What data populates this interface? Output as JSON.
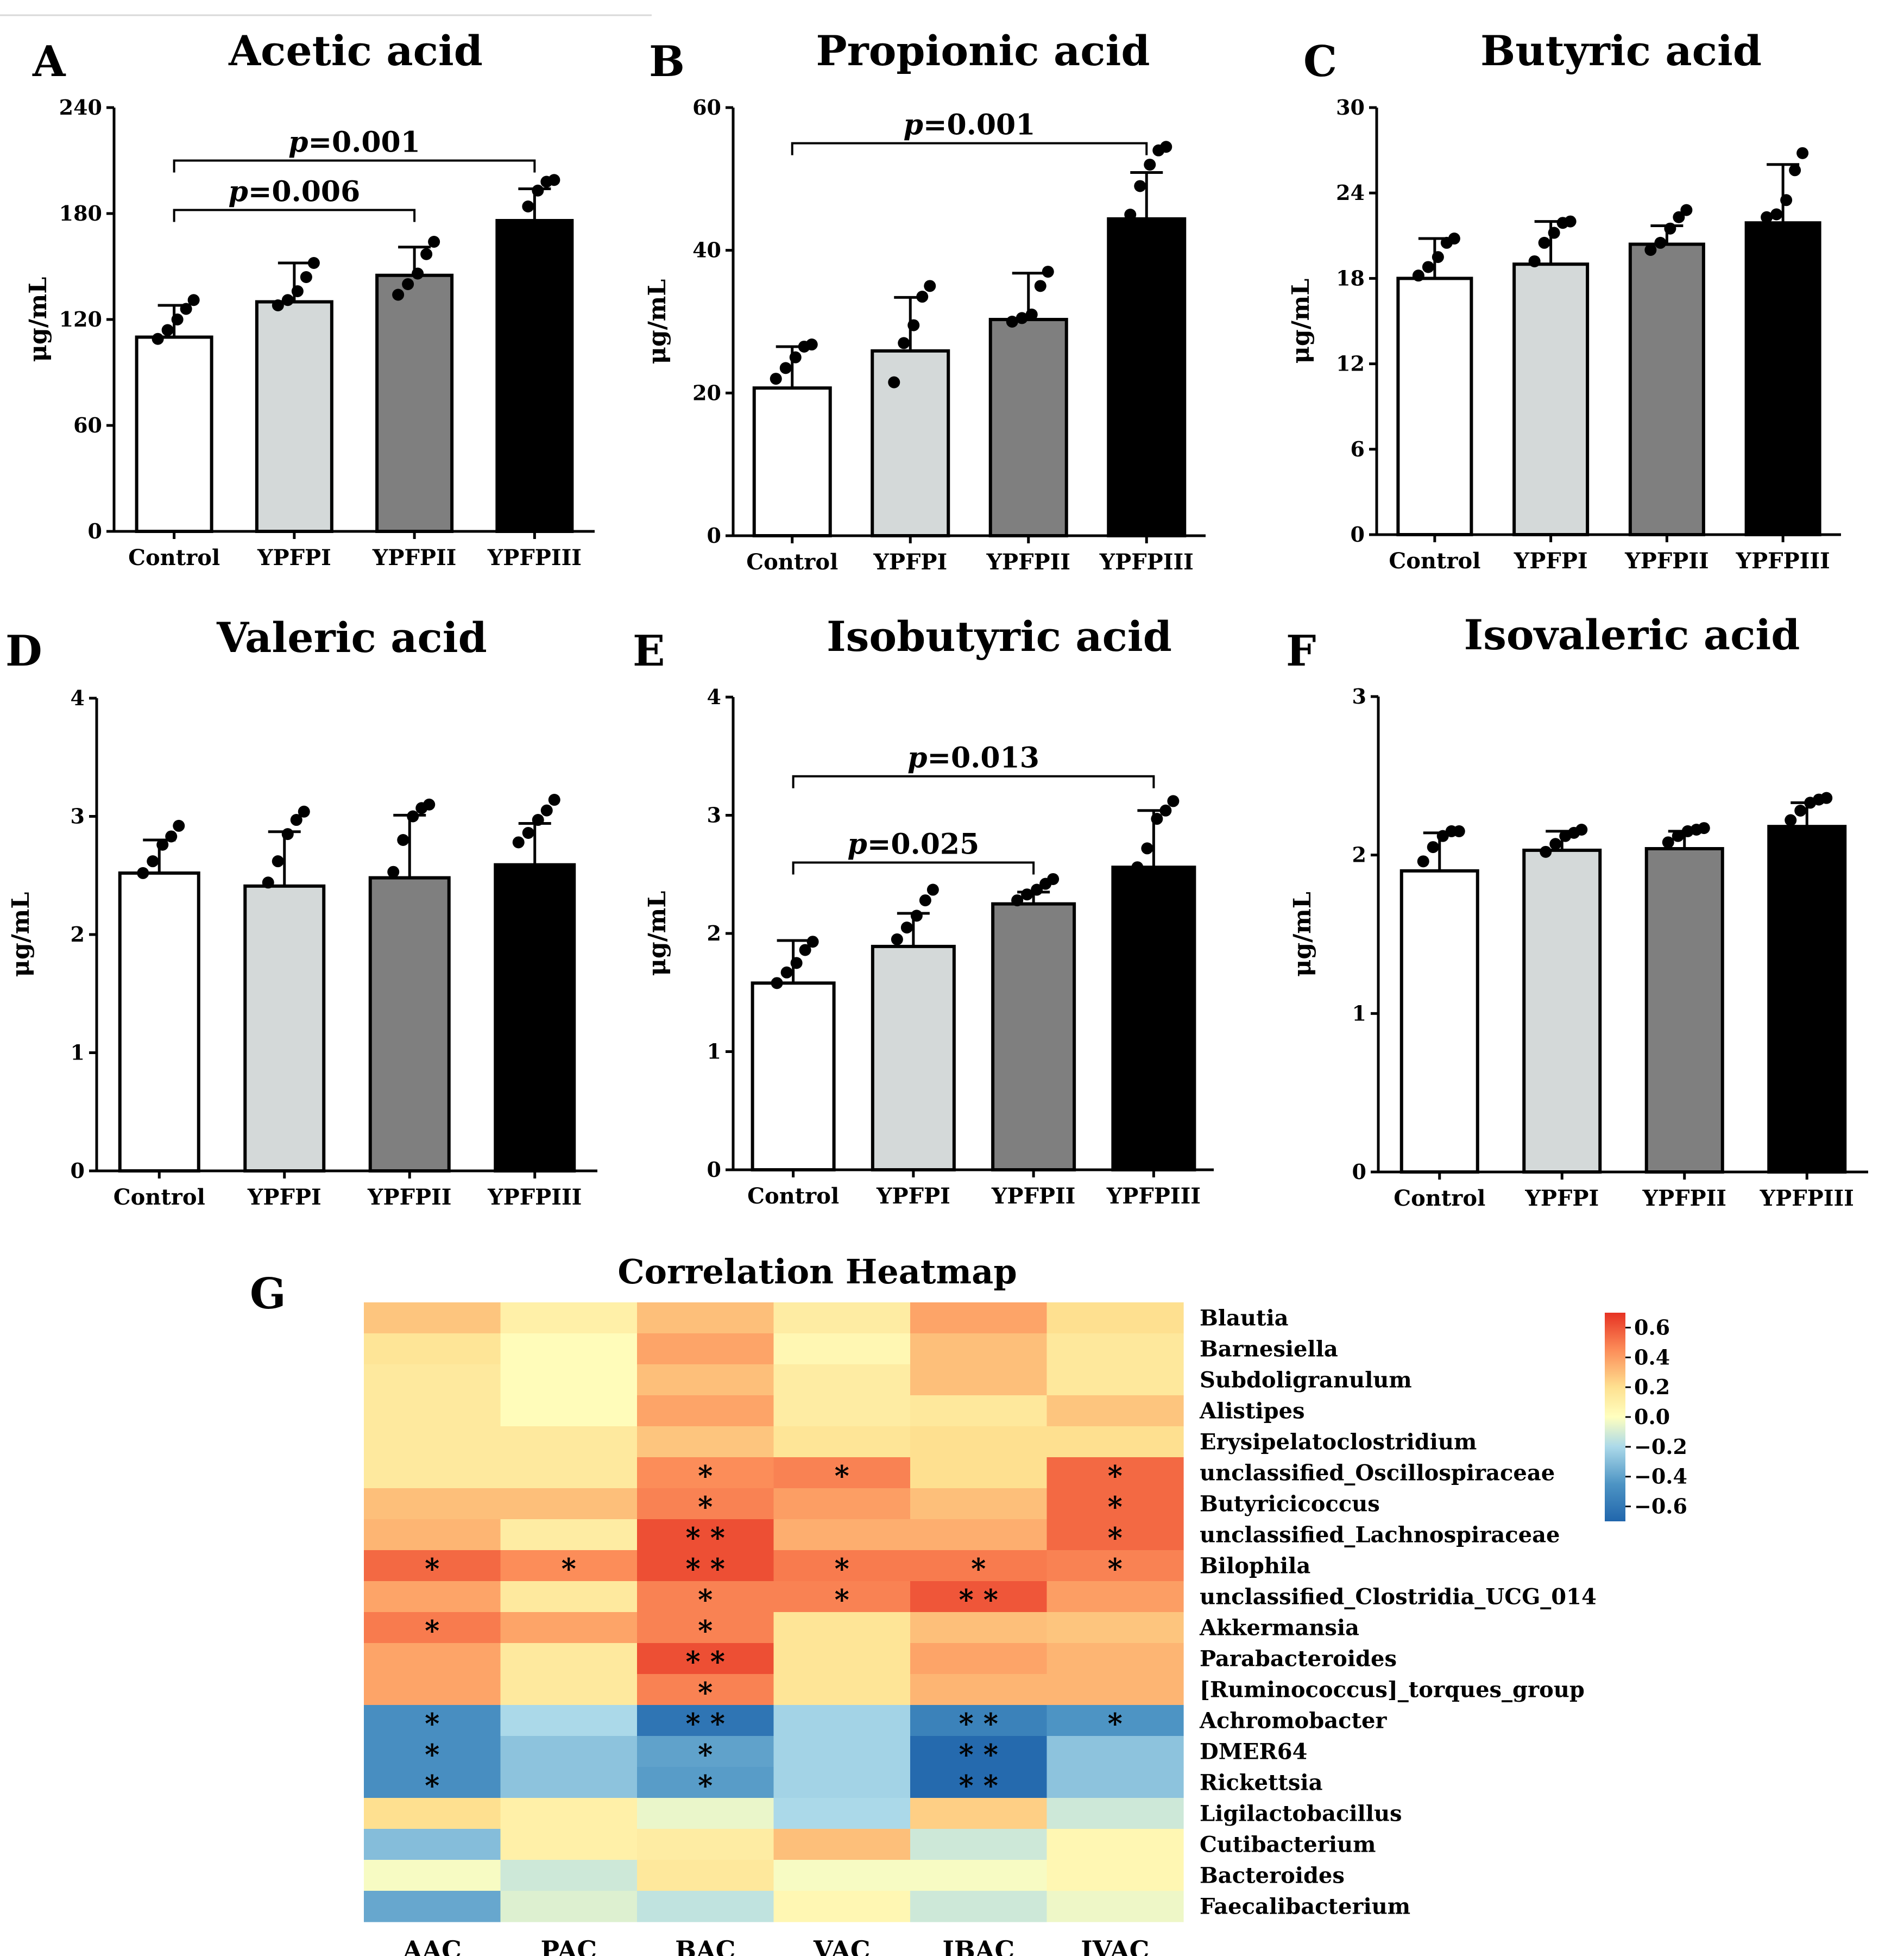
{
  "chart_data": [
    {
      "type": "bar",
      "panel": "A",
      "title": "Acetic acid",
      "ylabel": "μg/mL",
      "ylim": [
        0,
        240
      ],
      "yticks": [
        0,
        60,
        120,
        180,
        240
      ],
      "categories": [
        "Control",
        "YPFPI",
        "YPFPII",
        "YPFPIII"
      ],
      "values": [
        110,
        130,
        145,
        176
      ],
      "errors": [
        18,
        22,
        16,
        18
      ],
      "points": [
        [
          109,
          114,
          120,
          126,
          131
        ],
        [
          128,
          131,
          136,
          144,
          152
        ],
        [
          134,
          140,
          146,
          157,
          164
        ],
        [
          169,
          184,
          193,
          198,
          199
        ]
      ],
      "bar_colors": [
        "#ffffff",
        "#d4d9d9",
        "#7f7f7f",
        "#000000"
      ],
      "comparisons": [
        {
          "from": "Control",
          "to": "YPFPII",
          "label_prefix": "p",
          "label_value": "=0.006",
          "level": 182
        },
        {
          "from": "Control",
          "to": "YPFPIII",
          "label_prefix": "p",
          "label_value": "=0.001",
          "level": 210
        }
      ]
    },
    {
      "type": "bar",
      "panel": "B",
      "title": "Propionic acid",
      "ylabel": "μg/mL",
      "ylim": [
        0,
        60
      ],
      "yticks": [
        0,
        20,
        40,
        60
      ],
      "categories": [
        "Control",
        "YPFPI",
        "YPFPII",
        "YPFPIII"
      ],
      "values": [
        20.7,
        25.9,
        30.3,
        44.4
      ],
      "errors": [
        5.8,
        7.5,
        6.5,
        6.5
      ],
      "points": [
        [
          22,
          23.5,
          25,
          26.5,
          26.8
        ],
        [
          21.5,
          27,
          29.5,
          33.5,
          35
        ],
        [
          30,
          30.5,
          31,
          35,
          37
        ],
        [
          45,
          49,
          52,
          54,
          54.5
        ]
      ],
      "bar_colors": [
        "#ffffff",
        "#d4d9d9",
        "#7f7f7f",
        "#000000"
      ],
      "comparisons": [
        {
          "from": "Control",
          "to": "YPFPIII",
          "label_prefix": "p",
          "label_value": "=0.001",
          "level": 55
        }
      ]
    },
    {
      "type": "bar",
      "panel": "C",
      "title": "Butyric acid",
      "ylabel": "μg/mL",
      "ylim": [
        0,
        30
      ],
      "yticks": [
        0,
        6,
        12,
        18,
        24,
        30
      ],
      "categories": [
        "Control",
        "YPFPI",
        "YPFPII",
        "YPFPIII"
      ],
      "values": [
        18,
        19,
        20.4,
        21.9
      ],
      "errors": [
        2.8,
        3.0,
        1.3,
        4.1
      ],
      "points": [
        [
          18.2,
          18.8,
          19.5,
          20.5,
          20.8
        ],
        [
          19.2,
          20.5,
          21.2,
          21.9,
          22
        ],
        [
          20,
          20.5,
          21.5,
          22.3,
          22.8
        ],
        [
          22.3,
          22.5,
          23.5,
          25.6,
          26.8
        ]
      ],
      "bar_colors": [
        "#ffffff",
        "#d4d9d9",
        "#7f7f7f",
        "#000000"
      ],
      "comparisons": []
    },
    {
      "type": "bar",
      "panel": "D",
      "title": "Valeric acid",
      "ylabel": "μg/mL",
      "ylim": [
        0,
        4
      ],
      "yticks": [
        0,
        1,
        2,
        3,
        4
      ],
      "categories": [
        "Control",
        "YPFPI",
        "YPFPII",
        "YPFPIII"
      ],
      "values": [
        2.52,
        2.41,
        2.48,
        2.59
      ],
      "errors": [
        0.28,
        0.46,
        0.53,
        0.35
      ],
      "points": [
        [
          2.52,
          2.62,
          2.76,
          2.83,
          2.92
        ],
        [
          2.44,
          2.62,
          2.85,
          2.97,
          3.04
        ],
        [
          2.53,
          2.8,
          3.0,
          3.07,
          3.1
        ],
        [
          2.78,
          2.86,
          2.97,
          3.05,
          3.14
        ]
      ],
      "bar_colors": [
        "#ffffff",
        "#d4d9d9",
        "#7f7f7f",
        "#000000"
      ],
      "comparisons": []
    },
    {
      "type": "bar",
      "panel": "E",
      "title": "Isobutyric acid",
      "ylabel": "μg/mL",
      "ylim": [
        0,
        4
      ],
      "yticks": [
        0,
        1,
        2,
        3,
        4
      ],
      "categories": [
        "Control",
        "YPFPI",
        "YPFPII",
        "YPFPIII"
      ],
      "values": [
        1.58,
        1.89,
        2.25,
        2.56
      ],
      "errors": [
        0.36,
        0.28,
        0.1,
        0.48
      ],
      "points": [
        [
          1.58,
          1.67,
          1.75,
          1.86,
          1.93
        ],
        [
          1.95,
          2.05,
          2.15,
          2.28,
          2.37
        ],
        [
          2.28,
          2.33,
          2.37,
          2.42,
          2.46
        ],
        [
          2.56,
          2.72,
          2.97,
          3.04,
          3.12
        ]
      ],
      "bar_colors": [
        "#ffffff",
        "#d4d9d9",
        "#7f7f7f",
        "#000000"
      ],
      "comparisons": [
        {
          "from": "Control",
          "to": "YPFPII",
          "label_prefix": "p",
          "label_value": "=0.025",
          "level": 2.6
        },
        {
          "from": "Control",
          "to": "YPFPIII",
          "label_prefix": "p",
          "label_value": "=0.013",
          "level": 3.33
        }
      ]
    },
    {
      "type": "bar",
      "panel": "F",
      "title": "Isovaleric acid",
      "ylabel": "μg/mL",
      "ylim": [
        0,
        3
      ],
      "yticks": [
        0,
        1,
        2,
        3
      ],
      "categories": [
        "Control",
        "YPFPI",
        "YPFPII",
        "YPFPIII"
      ],
      "values": [
        1.9,
        2.03,
        2.04,
        2.18
      ],
      "errors": [
        0.24,
        0.12,
        0.11,
        0.15
      ],
      "points": [
        [
          1.96,
          2.05,
          2.12,
          2.15,
          2.15
        ],
        [
          2.02,
          2.07,
          2.12,
          2.14,
          2.16
        ],
        [
          2.08,
          2.12,
          2.15,
          2.16,
          2.17
        ],
        [
          2.22,
          2.28,
          2.33,
          2.35,
          2.36
        ]
      ],
      "bar_colors": [
        "#ffffff",
        "#d4d9d9",
        "#7f7f7f",
        "#000000"
      ],
      "comparisons": []
    },
    {
      "type": "heatmap",
      "panel": "G",
      "title": "Correlation Heatmap",
      "columns": [
        "AAC",
        "PAC",
        "BAC",
        "VAC",
        "IBAC",
        "IVAC"
      ],
      "rows": [
        "Blautia",
        "Barnesiella",
        "Subdoligranulum",
        "Alistipes",
        "Erysipelatoclostridium",
        "unclassified_Oscillospiraceae",
        "Butyricicoccus",
        "unclassified_Lachnospiraceae",
        "Bilophila",
        "unclassified_Clostridia_UCG_014",
        "Akkermansia",
        "Parabacteroides",
        "[Ruminococcus]_torques_group",
        "Achromobacter",
        "DMER64",
        "Rickettsia",
        "Ligilactobacillus",
        "Cutibacterium",
        "Bacteroides",
        "Faecalibacterium"
      ],
      "values": [
        [
          0.28,
          0.1,
          0.3,
          0.12,
          0.38,
          0.2
        ],
        [
          0.17,
          0.02,
          0.38,
          0.05,
          0.3,
          0.15
        ],
        [
          0.14,
          0.02,
          0.3,
          0.12,
          0.3,
          0.15
        ],
        [
          0.14,
          0.02,
          0.38,
          0.12,
          0.15,
          0.28
        ],
        [
          0.14,
          0.14,
          0.28,
          0.17,
          0.2,
          0.2
        ],
        [
          0.14,
          0.14,
          0.45,
          0.48,
          0.2,
          0.55
        ],
        [
          0.3,
          0.3,
          0.48,
          0.4,
          0.3,
          0.55
        ],
        [
          0.33,
          0.12,
          0.62,
          0.35,
          0.35,
          0.55
        ],
        [
          0.55,
          0.45,
          0.62,
          0.5,
          0.5,
          0.48
        ],
        [
          0.38,
          0.14,
          0.48,
          0.48,
          0.6,
          0.4
        ],
        [
          0.5,
          0.38,
          0.48,
          0.17,
          0.3,
          0.28
        ],
        [
          0.38,
          0.14,
          0.62,
          0.17,
          0.38,
          0.33
        ],
        [
          0.38,
          0.14,
          0.48,
          0.17,
          0.33,
          0.33
        ],
        [
          -0.48,
          -0.2,
          -0.62,
          -0.22,
          -0.55,
          -0.45
        ],
        [
          -0.48,
          -0.28,
          -0.4,
          -0.22,
          -0.68,
          -0.28
        ],
        [
          -0.48,
          -0.28,
          -0.42,
          -0.22,
          -0.68,
          -0.28
        ],
        [
          0.2,
          0.1,
          -0.05,
          -0.2,
          0.25,
          -0.12
        ],
        [
          -0.3,
          0.1,
          0.12,
          0.3,
          -0.12,
          0.05
        ],
        [
          -0.02,
          -0.12,
          0.15,
          -0.02,
          -0.02,
          0.05
        ],
        [
          -0.38,
          -0.08,
          -0.15,
          0.05,
          -0.12,
          -0.04
        ]
      ],
      "stars": [
        [
          "",
          "",
          "",
          "",
          "",
          ""
        ],
        [
          "",
          "",
          "",
          "",
          "",
          ""
        ],
        [
          "",
          "",
          "",
          "",
          "",
          ""
        ],
        [
          "",
          "",
          "",
          "",
          "",
          ""
        ],
        [
          "",
          "",
          "",
          "",
          "",
          ""
        ],
        [
          "",
          "",
          "*",
          "*",
          "",
          "*"
        ],
        [
          "",
          "",
          "*",
          "",
          "",
          "*"
        ],
        [
          "",
          "",
          "**",
          "",
          "",
          "*"
        ],
        [
          "*",
          "*",
          "**",
          "*",
          "*",
          "*"
        ],
        [
          "",
          "",
          "*",
          "*",
          "**",
          ""
        ],
        [
          "*",
          "",
          "*",
          "",
          "",
          ""
        ],
        [
          "",
          "",
          "**",
          "",
          "",
          ""
        ],
        [
          "",
          "",
          "*",
          "",
          "",
          ""
        ],
        [
          "*",
          "",
          "**",
          "",
          "**",
          "*"
        ],
        [
          "*",
          "",
          "*",
          "",
          "**",
          ""
        ],
        [
          "*",
          "",
          "*",
          "",
          "**",
          ""
        ],
        [
          "",
          "",
          "",
          "",
          "",
          ""
        ],
        [
          "",
          "",
          "",
          "",
          "",
          ""
        ],
        [
          "",
          "",
          "",
          "",
          "",
          ""
        ],
        [
          "",
          "",
          "",
          "",
          "",
          ""
        ]
      ],
      "colorbar": {
        "range": [
          -0.7,
          0.7
        ],
        "ticks": [
          0.6,
          0.4,
          0.2,
          0.0,
          -0.2,
          -0.4,
          -0.6
        ],
        "tick_labels": [
          "0.6",
          "0.4",
          "0.2",
          "0.0",
          "−0.2",
          "−0.4",
          "−0.6"
        ],
        "low_color": "#2166ac",
        "mid_color": "#ffffbf",
        "high_color": "#e63223"
      }
    }
  ]
}
